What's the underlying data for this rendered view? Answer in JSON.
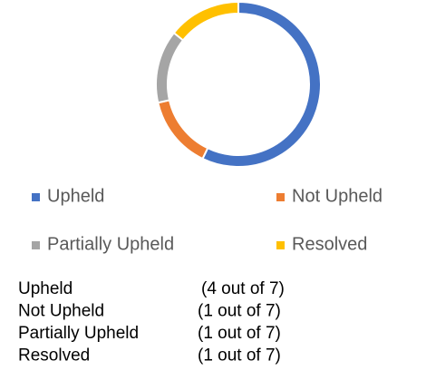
{
  "chart_data": {
    "type": "donut",
    "categories": [
      "Upheld",
      "Not Upheld",
      "Partially Upheld",
      "Resolved"
    ],
    "values": [
      4,
      1,
      1,
      1
    ],
    "colors": [
      "#4472C4",
      "#ED7D31",
      "#A5A5A5",
      "#FFC000"
    ],
    "legend": "bottom"
  },
  "summary": {
    "rows": [
      {
        "label": "Upheld",
        "count": "(4 out of 7)"
      },
      {
        "label": "Not Upheld",
        "count": "(1 out of 7)"
      },
      {
        "label": "Partially Upheld",
        "count": "(1 out of 7)"
      },
      {
        "label": "Resolved",
        "count": "(1 out of 7)"
      }
    ]
  }
}
